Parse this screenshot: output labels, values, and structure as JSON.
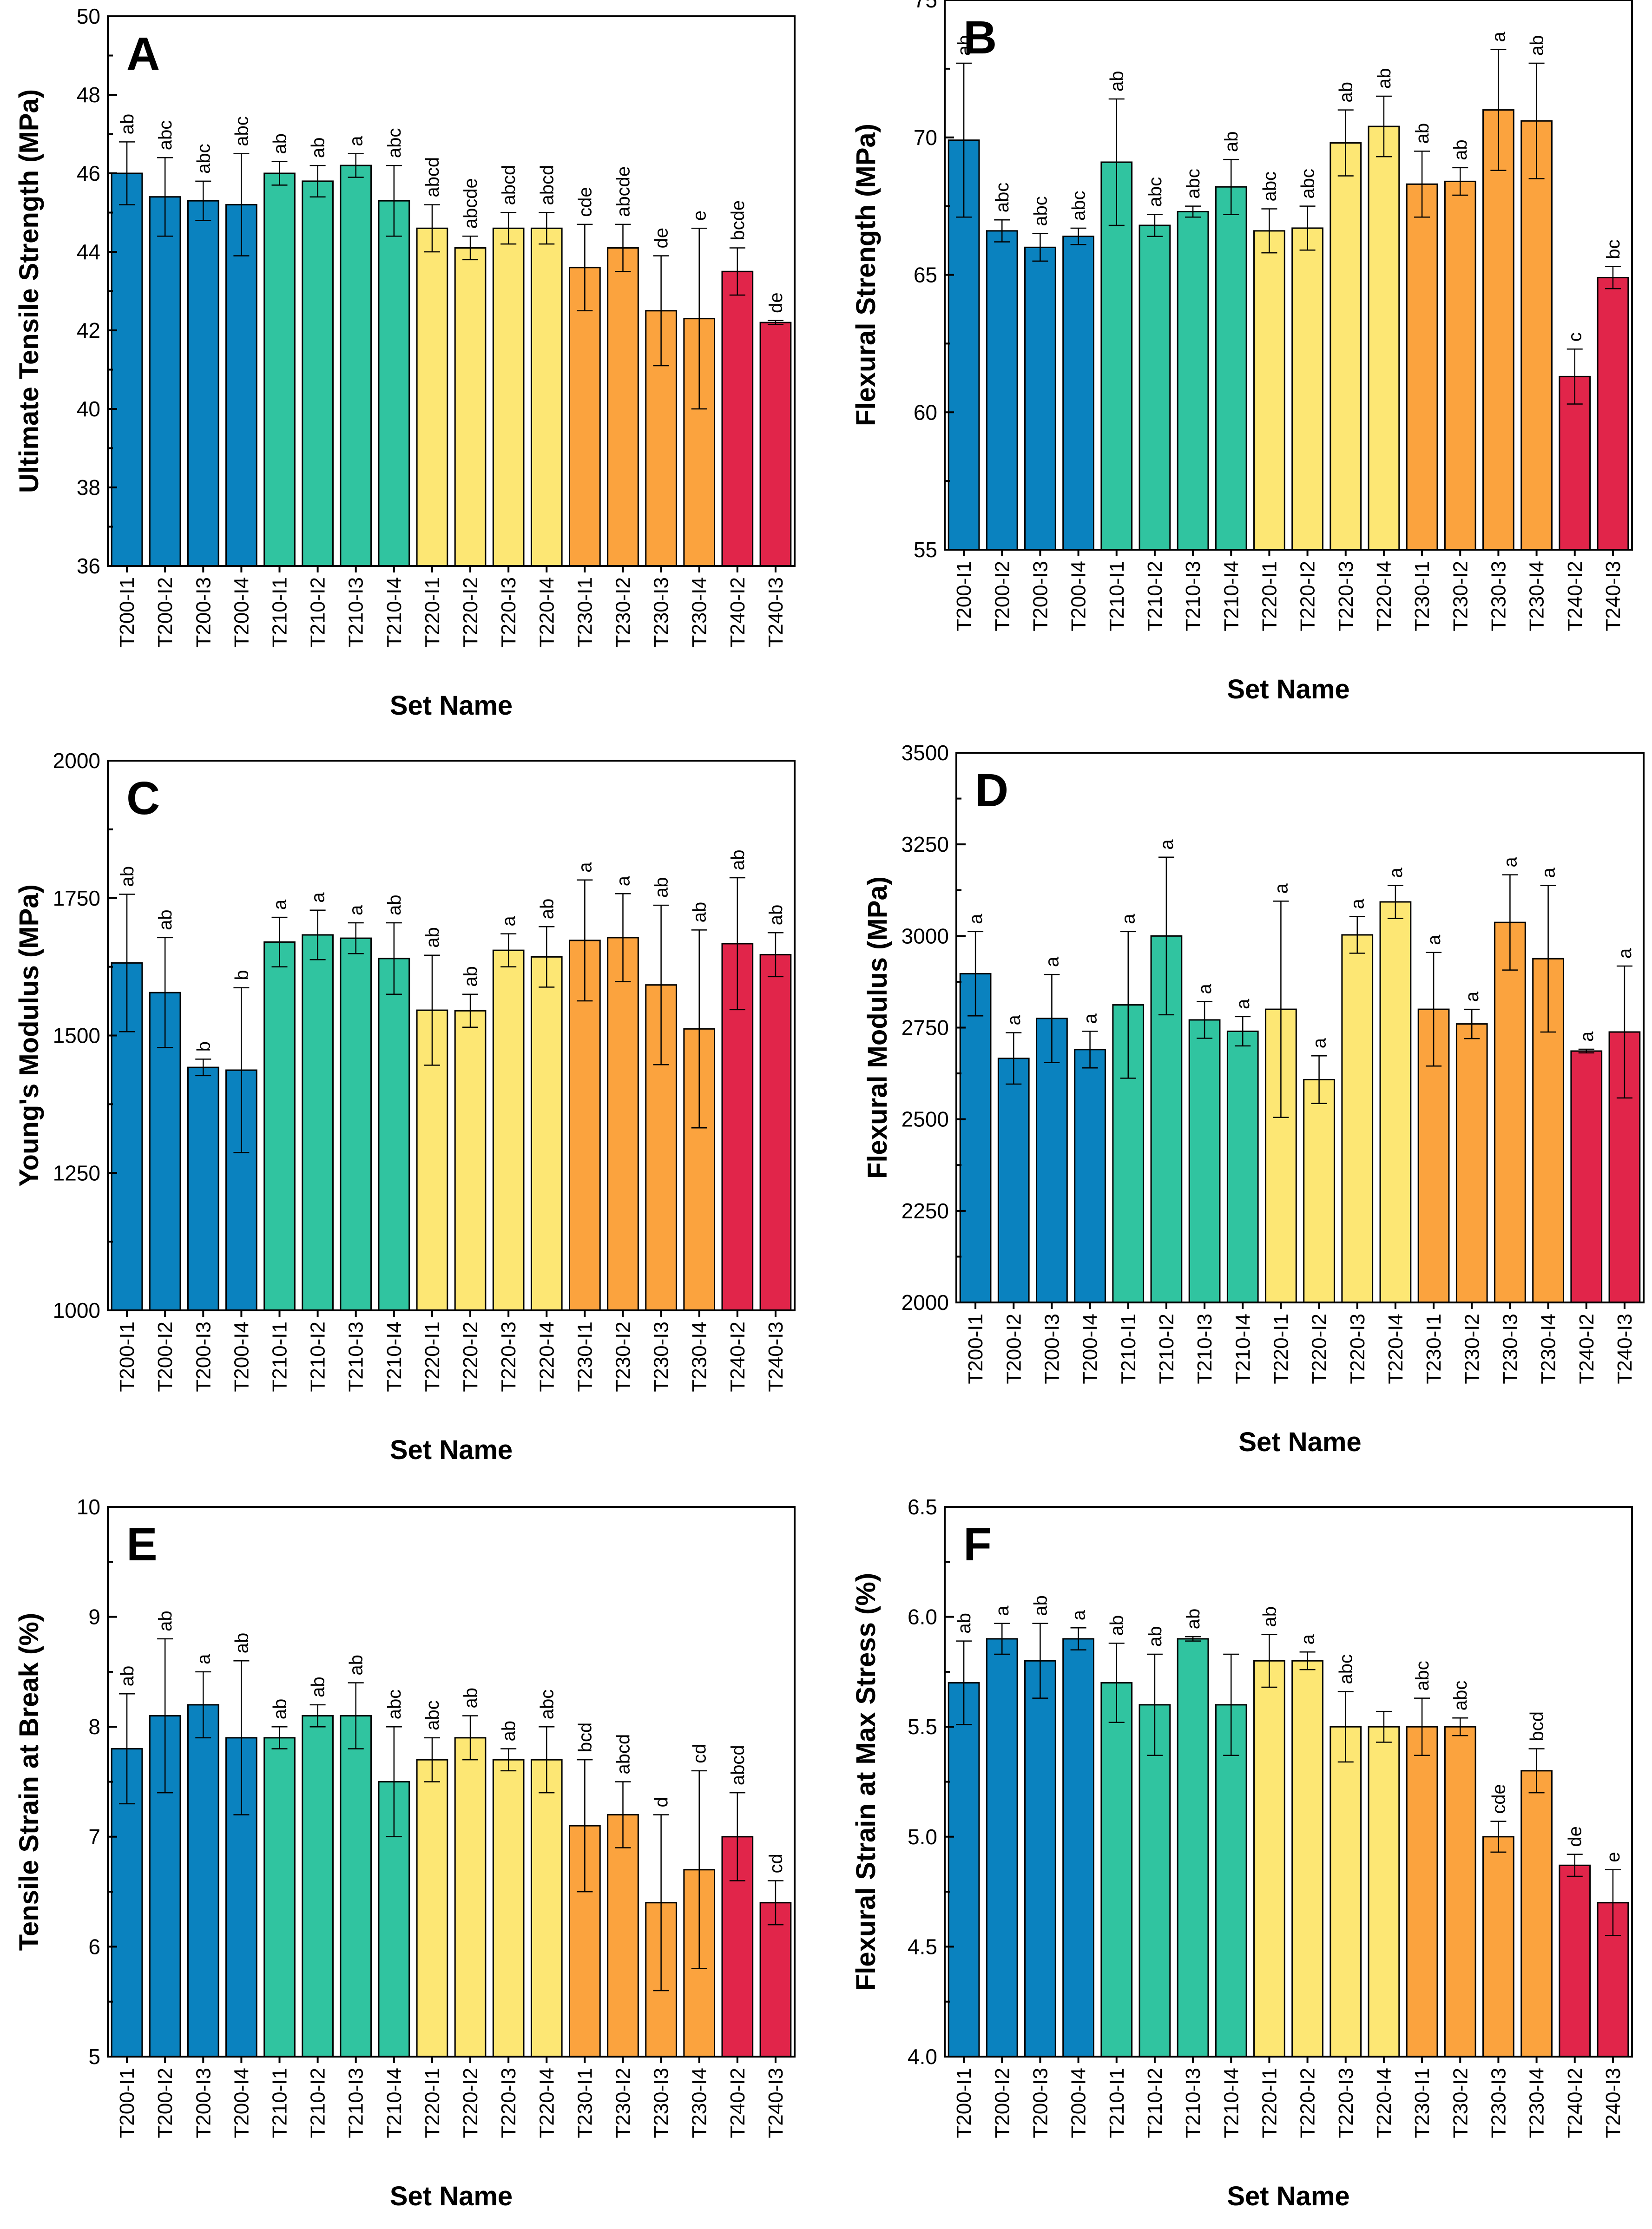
{
  "categories": [
    "T200-I1",
    "T200-I2",
    "T200-I3",
    "T200-I4",
    "T210-I1",
    "T210-I2",
    "T210-I3",
    "T210-I4",
    "T220-I1",
    "T220-I2",
    "T220-I3",
    "T220-I4",
    "T230-I1",
    "T230-I2",
    "T230-I3",
    "T230-I4",
    "T240-I2",
    "T240-I3"
  ],
  "colors": {
    "T200": "#0a82bf",
    "T210": "#30c4a0",
    "T220": "#fde774",
    "T230": "#fba33e",
    "T240": "#e1254a"
  },
  "chart_data": [
    {
      "type": "bar",
      "panel": "A",
      "title": "",
      "xlabel": "Set Name",
      "ylabel": "Ultimate Tensile Strength (MPa)",
      "ylim": [
        36,
        50
      ],
      "yticks": [
        "36",
        "38",
        "40",
        "42",
        "44",
        "46",
        "48",
        "50"
      ],
      "ytick_values": [
        36,
        38,
        40,
        42,
        44,
        46,
        48,
        50
      ],
      "minor_ticks": true,
      "values": [
        46.0,
        45.4,
        45.3,
        45.2,
        46.0,
        45.8,
        46.2,
        45.3,
        44.6,
        44.1,
        44.6,
        44.6,
        43.6,
        44.1,
        42.5,
        42.3,
        43.5,
        42.2
      ],
      "errors": [
        0.8,
        1.0,
        0.5,
        1.3,
        0.3,
        0.4,
        0.3,
        0.9,
        0.6,
        0.3,
        0.4,
        0.4,
        1.1,
        0.6,
        1.4,
        2.3,
        0.6,
        0.05
      ],
      "letters": [
        "ab",
        "abc",
        "abc",
        "abc",
        "ab",
        "ab",
        "a",
        "abc",
        "abcd",
        "abcde",
        "abcd",
        "abcd",
        "cde",
        "abcde",
        "de",
        "e",
        "bcde",
        "de"
      ]
    },
    {
      "type": "bar",
      "panel": "B",
      "title": "",
      "xlabel": "Set Name",
      "ylabel": "Flexural Strength (MPa)",
      "ylim": [
        55,
        75
      ],
      "yticks": [
        "55",
        "60",
        "65",
        "70",
        "75"
      ],
      "ytick_values": [
        55,
        60,
        65,
        70,
        75
      ],
      "minor_ticks": true,
      "values": [
        69.9,
        66.6,
        66.0,
        66.4,
        69.1,
        66.8,
        67.3,
        68.2,
        66.6,
        66.7,
        69.8,
        70.4,
        68.3,
        68.4,
        71.0,
        70.6,
        61.3,
        64.9
      ],
      "errors": [
        2.8,
        0.4,
        0.5,
        0.3,
        2.3,
        0.4,
        0.2,
        1.0,
        0.8,
        0.8,
        1.2,
        1.1,
        1.2,
        0.5,
        2.2,
        2.1,
        1.0,
        0.4
      ],
      "letters": [
        "ab",
        "abc",
        "abc",
        "abc",
        "ab",
        "abc",
        "abc",
        "ab",
        "abc",
        "abc",
        "ab",
        "ab",
        "ab",
        "ab",
        "a",
        "ab",
        "c",
        "bc"
      ]
    },
    {
      "type": "bar",
      "panel": "C",
      "title": "",
      "xlabel": "Set Name",
      "ylabel": "Young's Modulus (MPa)",
      "ylim": [
        1000,
        2000
      ],
      "yticks": [
        "1000",
        "1250",
        "1500",
        "1750",
        "2000"
      ],
      "ytick_values": [
        1000,
        1250,
        1500,
        1750,
        2000
      ],
      "minor_ticks": true,
      "values": [
        1632,
        1578,
        1442,
        1437,
        1670,
        1683,
        1677,
        1640,
        1546,
        1545,
        1655,
        1643,
        1673,
        1678,
        1592,
        1512,
        1667,
        1647
      ],
      "errors": [
        125,
        100,
        15,
        150,
        45,
        45,
        28,
        65,
        100,
        30,
        30,
        55,
        110,
        80,
        145,
        180,
        120,
        40
      ],
      "letters": [
        "ab",
        "ab",
        "b",
        "b",
        "a",
        "a",
        "a",
        "ab",
        "ab",
        "ab",
        "a",
        "ab",
        "a",
        "a",
        "ab",
        "ab",
        "ab",
        "ab"
      ]
    },
    {
      "type": "bar",
      "panel": "D",
      "title": "",
      "xlabel": "Set Name",
      "ylabel": "Flexural Modulus (MPa)",
      "ylim": [
        2000,
        3500
      ],
      "yticks": [
        "2000",
        "2250",
        "2500",
        "2750",
        "3000",
        "3250",
        "3500"
      ],
      "ytick_values": [
        2000,
        2250,
        2500,
        2750,
        3000,
        3250,
        3500
      ],
      "minor_ticks": true,
      "values": [
        2897,
        2666,
        2775,
        2690,
        2812,
        3000,
        2771,
        2740,
        2800,
        2608,
        3003,
        3093,
        2800,
        2760,
        3037,
        2938,
        2686,
        2738
      ],
      "errors": [
        115,
        70,
        120,
        50,
        200,
        215,
        50,
        40,
        295,
        65,
        50,
        45,
        155,
        40,
        130,
        200,
        5,
        180
      ],
      "letters": [
        "a",
        "a",
        "a",
        "a",
        "a",
        "a",
        "a",
        "a",
        "a",
        "a",
        "a",
        "a",
        "a",
        "a",
        "a",
        "a",
        "a",
        "a"
      ]
    },
    {
      "type": "bar",
      "panel": "E",
      "title": "",
      "xlabel": "Set Name",
      "ylabel": "Tensile Strain at Break (%)",
      "ylim": [
        5,
        10
      ],
      "yticks": [
        "5",
        "6",
        "7",
        "8",
        "9",
        "10"
      ],
      "ytick_values": [
        5,
        6,
        7,
        8,
        9,
        10
      ],
      "minor_ticks": true,
      "values": [
        7.8,
        8.1,
        8.2,
        7.9,
        7.9,
        8.1,
        8.1,
        7.5,
        7.7,
        7.9,
        7.7,
        7.7,
        7.1,
        7.2,
        6.4,
        6.7,
        7.0,
        6.4
      ],
      "errors": [
        0.5,
        0.7,
        0.3,
        0.7,
        0.1,
        0.1,
        0.3,
        0.5,
        0.2,
        0.2,
        0.1,
        0.3,
        0.6,
        0.3,
        0.8,
        0.9,
        0.4,
        0.2
      ],
      "letters": [
        "ab",
        "ab",
        "a",
        "ab",
        "ab",
        "ab",
        "ab",
        "abc",
        "abc",
        "ab",
        "ab",
        "abc",
        "bcd",
        "abcd",
        "d",
        "cd",
        "abcd",
        "cd"
      ]
    },
    {
      "type": "bar",
      "panel": "F",
      "title": "",
      "xlabel": "Set Name",
      "ylabel": "Flexural Strain at Max Stress (%)",
      "ylim": [
        4.0,
        6.5
      ],
      "yticks": [
        "4.0",
        "4.5",
        "5.0",
        "5.5",
        "6.0",
        "6.5"
      ],
      "ytick_values": [
        4.0,
        4.5,
        5.0,
        5.5,
        6.0,
        6.5
      ],
      "minor_ticks": true,
      "values": [
        5.7,
        5.9,
        5.8,
        5.9,
        5.7,
        5.6,
        5.9,
        5.6,
        5.8,
        5.8,
        5.5,
        5.5,
        5.5,
        5.5,
        5.0,
        5.3,
        4.87,
        4.7
      ],
      "errors": [
        0.19,
        0.07,
        0.17,
        0.05,
        0.18,
        0.23,
        0.01,
        0.23,
        0.12,
        0.04,
        0.16,
        0.07,
        0.13,
        0.04,
        0.07,
        0.1,
        0.05,
        0.15
      ],
      "letters": [
        "ab",
        "a",
        "ab",
        "a",
        "ab",
        "ab",
        "ab",
        "",
        "ab",
        "a",
        "abc",
        "",
        "abc",
        "abc",
        "cde",
        "bcd",
        "de",
        "e"
      ]
    }
  ]
}
